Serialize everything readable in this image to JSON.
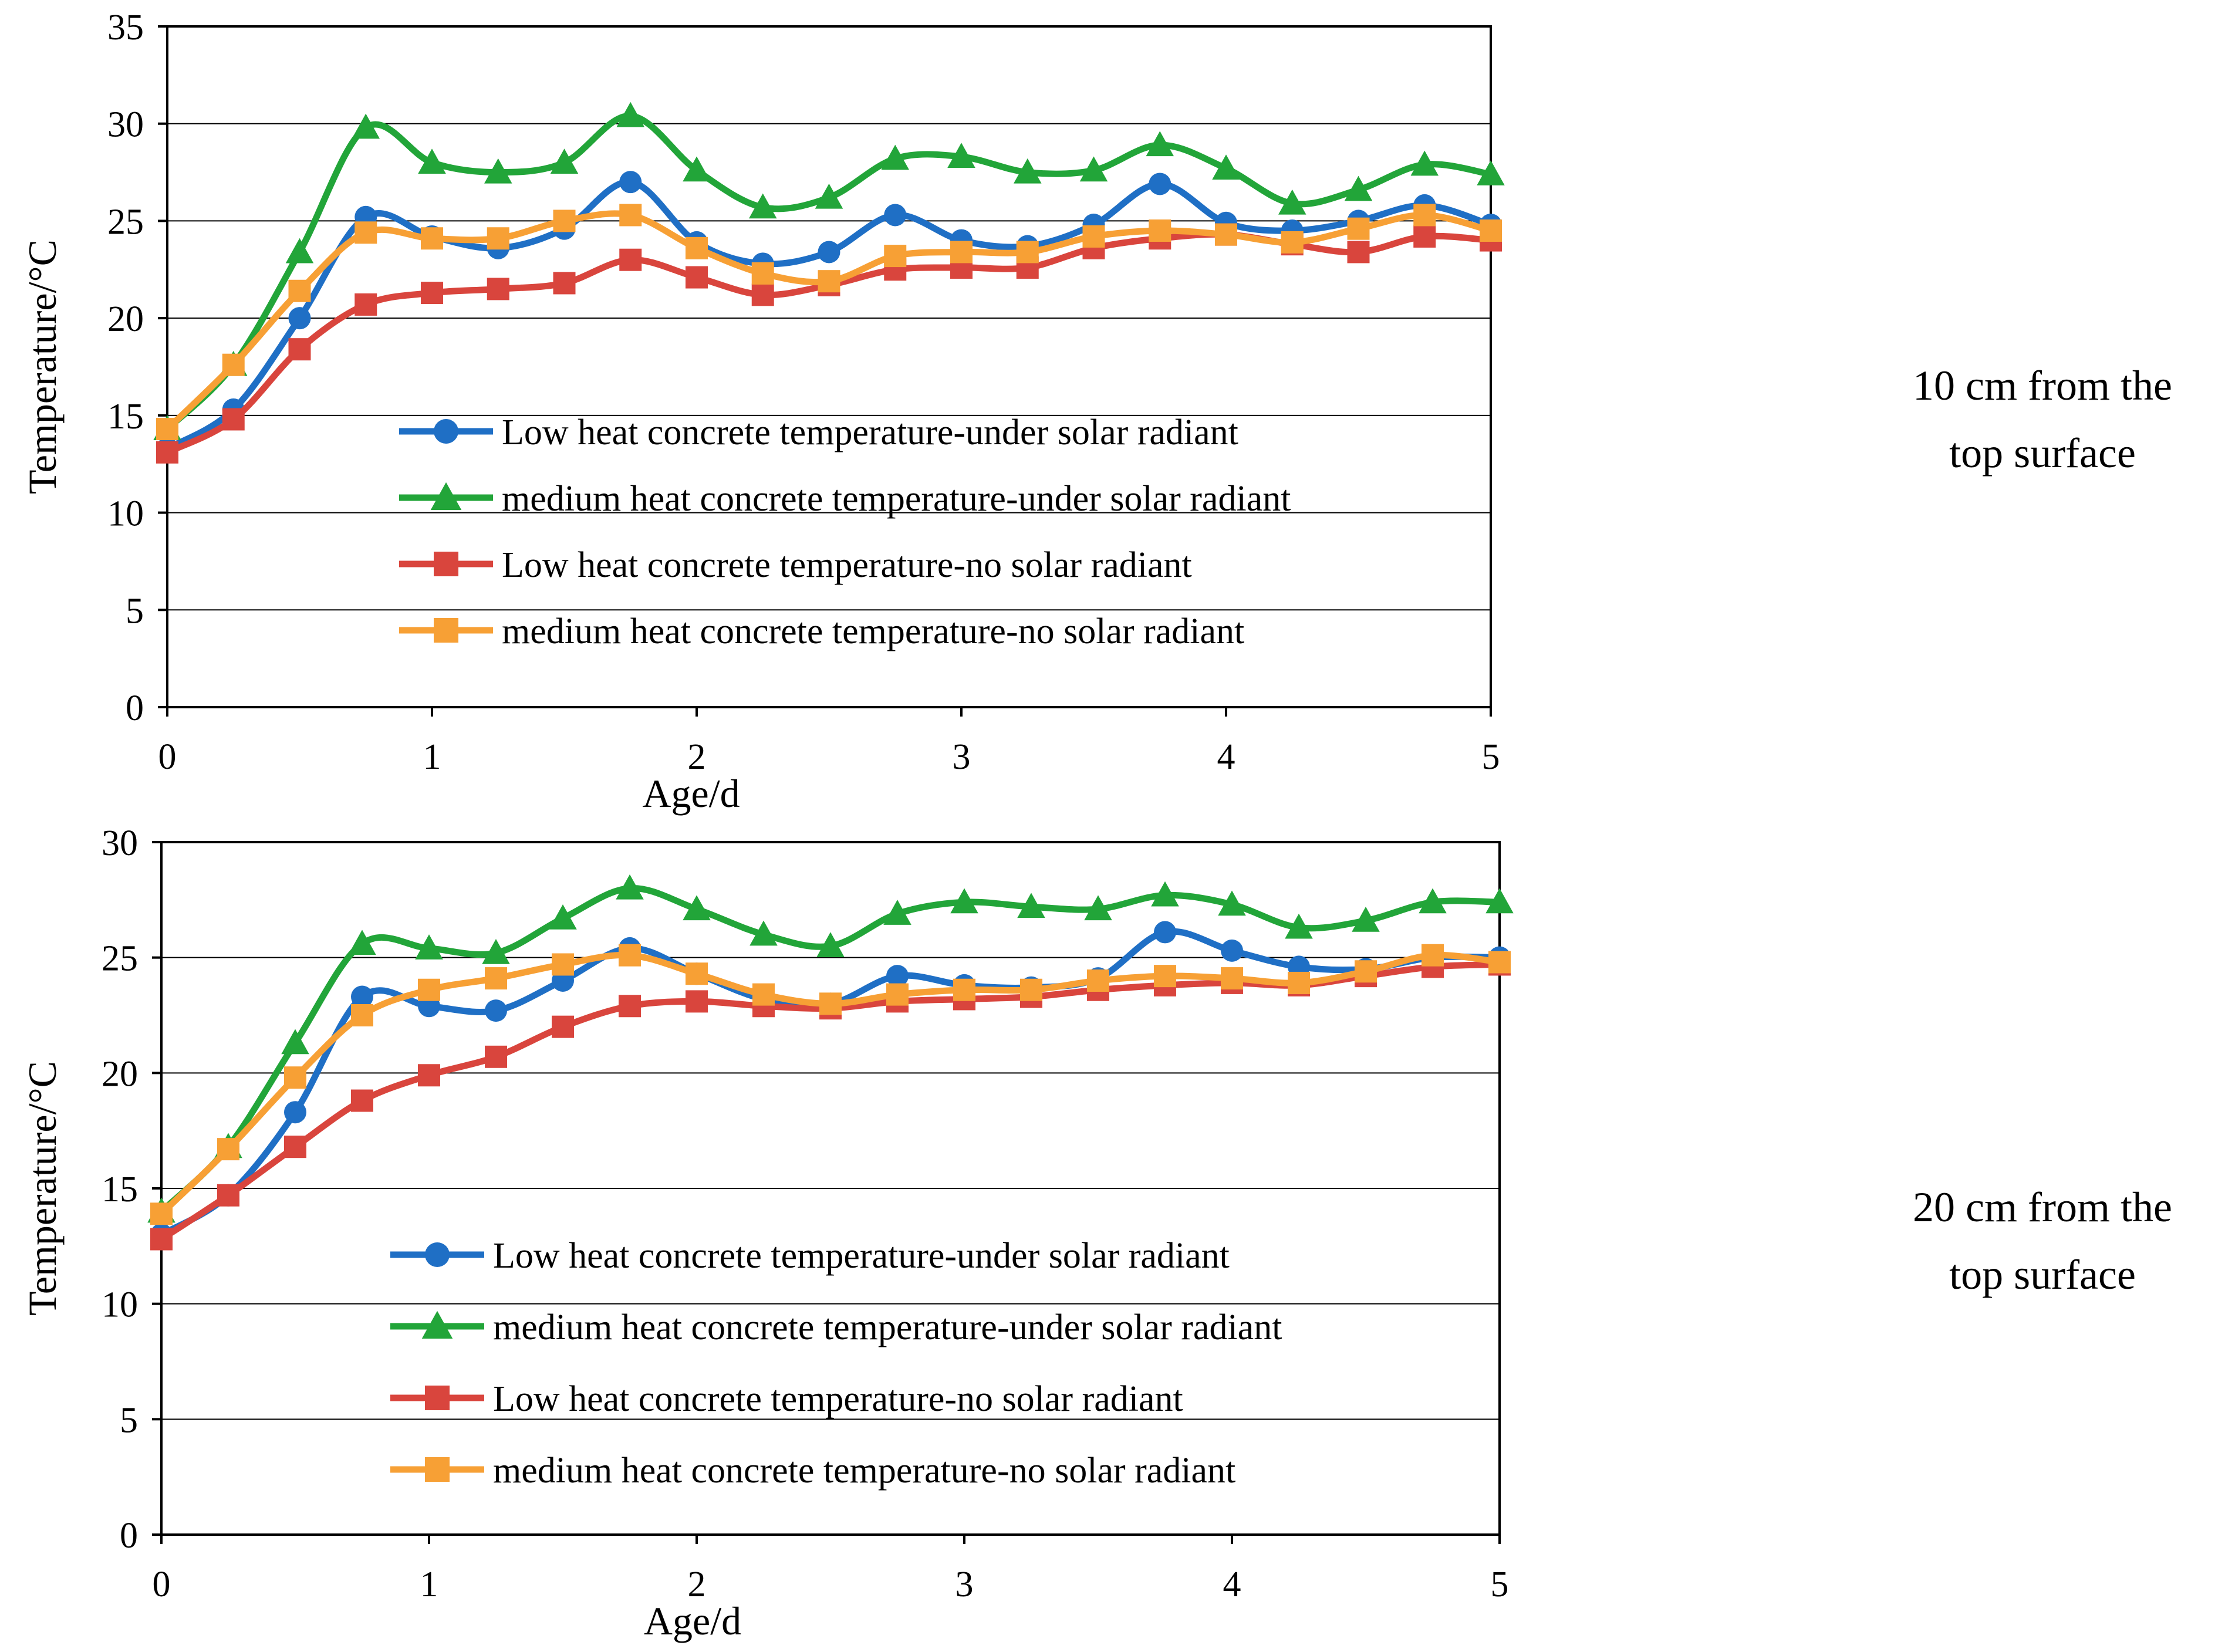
{
  "colors": {
    "low_solar": "#1f6fc5",
    "medium_solar": "#22a539",
    "low_no_solar": "#d9453d",
    "medium_no_solar": "#f7a035",
    "grid": "#000000",
    "axis": "#000000"
  },
  "chart_data": [
    {
      "type": "line",
      "title": "",
      "xlabel": "Age/d",
      "ylabel": "Temperature/°C",
      "xlim": [
        0,
        5
      ],
      "ylim": [
        0,
        35
      ],
      "xticks": [
        0,
        1,
        2,
        3,
        4,
        5
      ],
      "yticks": [
        0,
        5,
        10,
        15,
        20,
        25,
        30,
        35
      ],
      "grid": "horizontal",
      "legend_position": "center-bottom",
      "side_label": [
        "10 cm from the",
        "top surface"
      ],
      "x": [
        0,
        0.25,
        0.5,
        0.75,
        1,
        1.25,
        1.5,
        1.75,
        2,
        2.25,
        2.5,
        2.75,
        3,
        3.25,
        3.5,
        3.75,
        4,
        4.25,
        4.5,
        4.75,
        5
      ],
      "series": [
        {
          "name": "Low heat concrete temperature-under solar radiant",
          "marker": "circle",
          "color_key": "low_solar",
          "values": [
            13.3,
            15.3,
            20.0,
            25.2,
            24.2,
            23.6,
            24.6,
            27.0,
            23.9,
            22.8,
            23.4,
            25.3,
            24.0,
            23.7,
            24.8,
            26.9,
            24.9,
            24.5,
            25.0,
            25.8,
            24.8
          ]
        },
        {
          "name": "medium heat concrete temperature-under solar radiant",
          "marker": "triangle",
          "color_key": "medium_solar",
          "values": [
            14.3,
            17.6,
            23.4,
            29.8,
            28.0,
            27.5,
            28.0,
            30.4,
            27.6,
            25.7,
            26.2,
            28.2,
            28.3,
            27.5,
            27.6,
            28.9,
            27.7,
            25.9,
            26.6,
            27.9,
            27.4
          ]
        },
        {
          "name": "Low heat concrete temperature-no solar radiant",
          "marker": "square",
          "color_key": "low_no_solar",
          "values": [
            13.1,
            14.8,
            18.4,
            20.7,
            21.3,
            21.5,
            21.8,
            23.0,
            22.1,
            21.2,
            21.7,
            22.5,
            22.6,
            22.6,
            23.6,
            24.1,
            24.3,
            23.8,
            23.4,
            24.2,
            24.0
          ]
        },
        {
          "name": "medium heat concrete temperature-no solar radiant",
          "marker": "square",
          "color_key": "medium_no_solar",
          "values": [
            14.3,
            17.6,
            21.4,
            24.4,
            24.1,
            24.1,
            25.0,
            25.3,
            23.6,
            22.3,
            21.9,
            23.2,
            23.4,
            23.4,
            24.2,
            24.5,
            24.3,
            23.9,
            24.6,
            25.3,
            24.5
          ]
        }
      ]
    },
    {
      "type": "line",
      "title": "",
      "xlabel": "Age/d",
      "ylabel": "Temperature/°C",
      "xlim": [
        0,
        5
      ],
      "ylim": [
        0,
        30
      ],
      "xticks": [
        0,
        1,
        2,
        3,
        4,
        5
      ],
      "yticks": [
        0,
        5,
        10,
        15,
        20,
        25,
        30
      ],
      "grid": "horizontal",
      "legend_position": "center-bottom",
      "side_label": [
        "20 cm from the",
        "top surface"
      ],
      "x": [
        0,
        0.25,
        0.5,
        0.75,
        1,
        1.25,
        1.5,
        1.75,
        2,
        2.25,
        2.5,
        2.75,
        3,
        3.25,
        3.5,
        3.75,
        4,
        4.25,
        4.5,
        4.75,
        5
      ],
      "series": [
        {
          "name": "Low heat concrete temperature-under solar radiant",
          "marker": "circle",
          "color_key": "low_solar",
          "values": [
            13.0,
            14.7,
            18.3,
            23.3,
            22.9,
            22.7,
            24.0,
            25.4,
            24.3,
            23.2,
            23.0,
            24.2,
            23.8,
            23.7,
            24.1,
            26.1,
            25.3,
            24.6,
            24.5,
            25.0,
            25.0
          ]
        },
        {
          "name": "medium heat concrete temperature-under solar radiant",
          "marker": "triangle",
          "color_key": "medium_solar",
          "values": [
            14.0,
            16.8,
            21.3,
            25.6,
            25.4,
            25.2,
            26.7,
            28.0,
            27.1,
            26.0,
            25.5,
            26.9,
            27.4,
            27.2,
            27.1,
            27.7,
            27.3,
            26.3,
            26.6,
            27.4,
            27.4
          ]
        },
        {
          "name": "Low heat concrete temperature-no solar radiant",
          "marker": "square",
          "color_key": "low_no_solar",
          "values": [
            12.8,
            14.7,
            16.8,
            18.8,
            19.9,
            20.7,
            22.0,
            22.9,
            23.1,
            22.9,
            22.8,
            23.1,
            23.2,
            23.3,
            23.6,
            23.8,
            23.9,
            23.8,
            24.2,
            24.6,
            24.7
          ]
        },
        {
          "name": "medium heat concrete temperature-no solar radiant",
          "marker": "square",
          "color_key": "medium_no_solar",
          "values": [
            13.9,
            16.7,
            19.8,
            22.5,
            23.6,
            24.1,
            24.7,
            25.1,
            24.3,
            23.4,
            23.0,
            23.4,
            23.6,
            23.6,
            24.0,
            24.2,
            24.1,
            23.9,
            24.4,
            25.1,
            24.8
          ]
        }
      ]
    }
  ]
}
